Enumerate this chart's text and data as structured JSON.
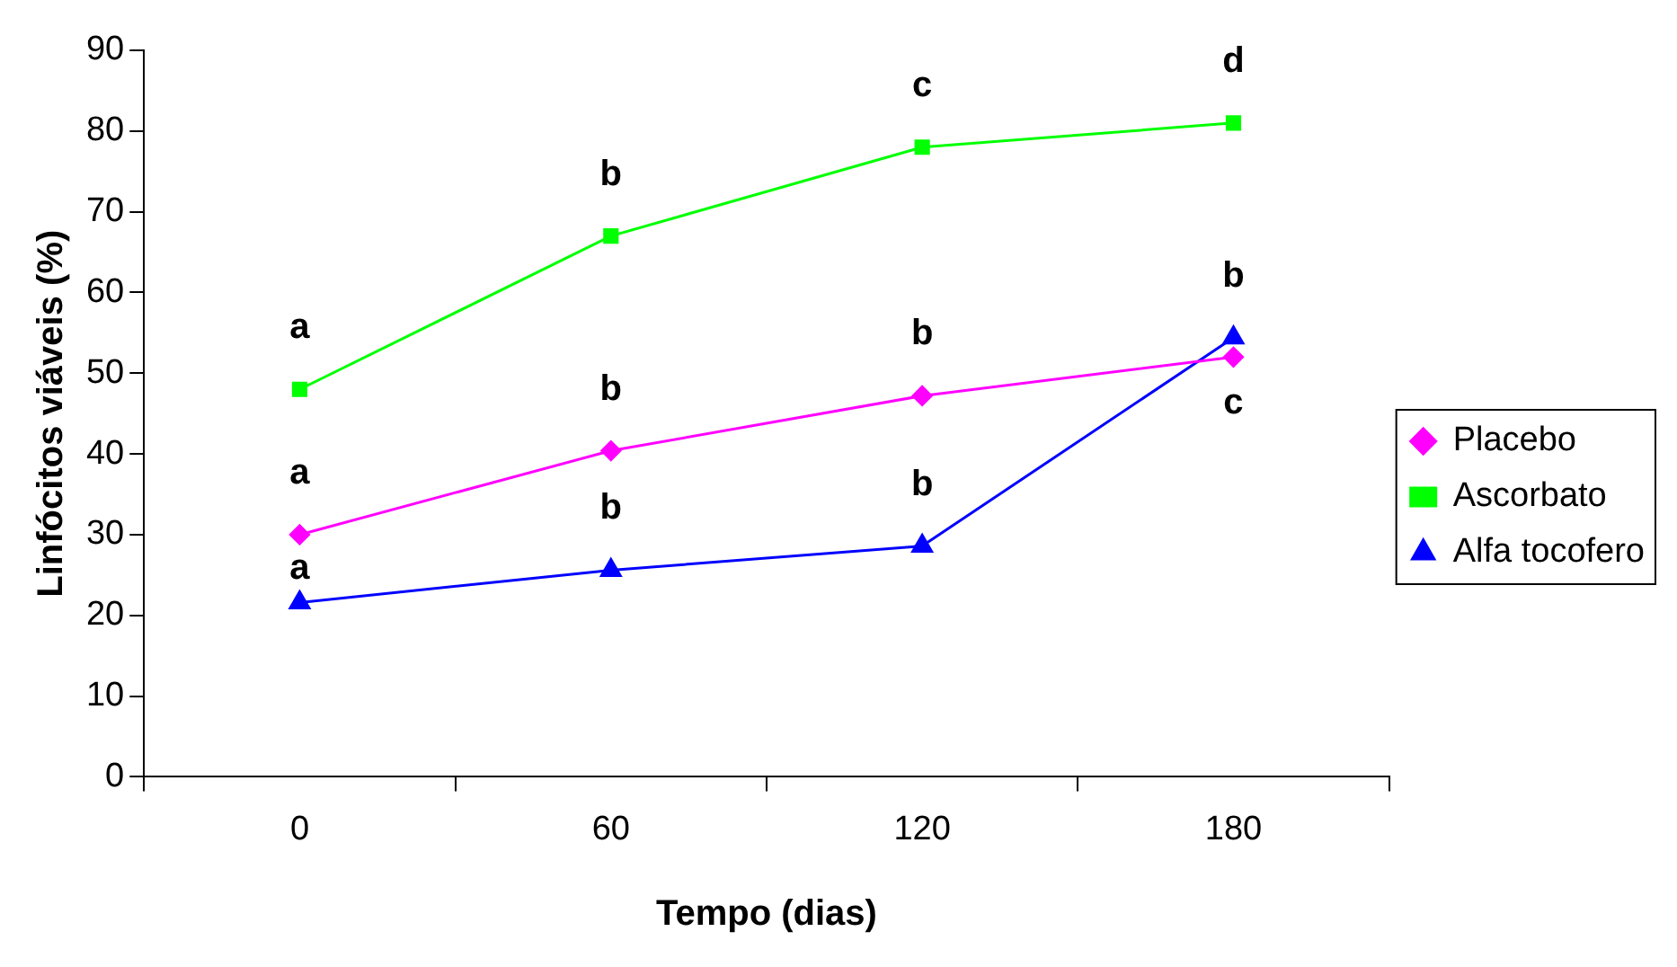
{
  "chart_data": {
    "type": "line",
    "xlabel": "Tempo (dias)",
    "ylabel": "Linfócitos viáveis (%)",
    "categories": [
      "0",
      "60",
      "120",
      "180"
    ],
    "ylim": [
      0,
      90
    ],
    "yticks": [
      0,
      10,
      20,
      30,
      40,
      50,
      60,
      70,
      80,
      90
    ],
    "grid": false,
    "legend": "right",
    "line_style": "solid",
    "series": [
      {
        "name": "Placebo",
        "color": "#ff00ff",
        "marker": "diamond",
        "values": [
          30,
          40.4,
          47.2,
          52
        ]
      },
      {
        "name": "Ascorbato",
        "color": "#00ff00",
        "marker": "square",
        "values": [
          48,
          67,
          78,
          81
        ]
      },
      {
        "name": "Alfa tocofero",
        "color": "#0000ff",
        "marker": "triangle",
        "values": [
          21.6,
          25.6,
          28.6,
          54.4
        ]
      }
    ],
    "annotations": [
      {
        "text": "a",
        "x": "0",
        "y": 48
      },
      {
        "text": "b",
        "x": "60",
        "y": 67
      },
      {
        "text": "c",
        "x": "120",
        "y": 78
      },
      {
        "text": "d",
        "x": "180",
        "y": 81
      },
      {
        "text": "a",
        "x": "0",
        "y": 30
      },
      {
        "text": "b",
        "x": "60",
        "y": 40.4
      },
      {
        "text": "b",
        "x": "120",
        "y": 47.2
      },
      {
        "text": "c",
        "x": "180",
        "y": 52
      },
      {
        "text": "a",
        "x": "0",
        "y": 21.6
      },
      {
        "text": "b",
        "x": "60",
        "y": 25.6
      },
      {
        "text": "b",
        "x": "120",
        "y": 28.6
      },
      {
        "text": "b",
        "x": "180",
        "y": 54.4
      }
    ]
  }
}
